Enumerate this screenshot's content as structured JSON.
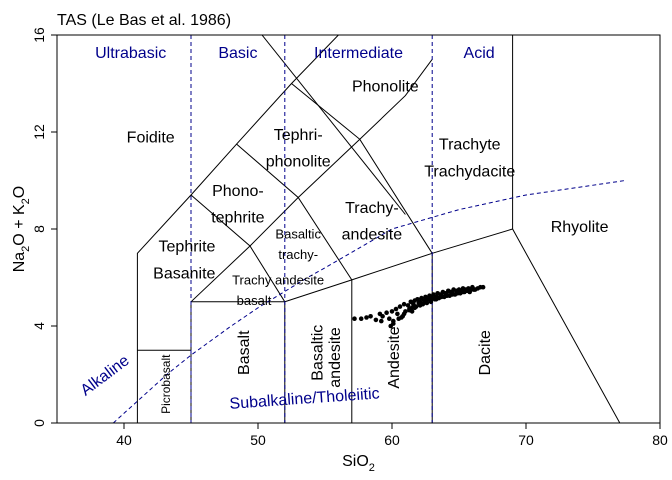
{
  "chart_data": {
    "type": "scatter",
    "title": "TAS (Le Bas et al. 1986)",
    "xlabel": "SiO",
    "xlabel_sub": "2",
    "ylabel_parts": [
      "Na",
      "2",
      "O + K",
      "2",
      "O"
    ],
    "xlim": [
      35,
      80
    ],
    "ylim": [
      0,
      16
    ],
    "x_ticks": [
      40,
      50,
      60,
      70,
      80
    ],
    "y_ticks": [
      0,
      4,
      8,
      12,
      16
    ],
    "grid": false,
    "colors": {
      "fields": "#000000",
      "divisions": "#00008b",
      "points": "#000000"
    },
    "divisions": {
      "x": [
        45,
        52,
        63
      ],
      "labels": [
        {
          "text": "Ultrabasic",
          "x": 40.5,
          "y": 15.3
        },
        {
          "text": "Basic",
          "x": 48.5,
          "y": 15.3
        },
        {
          "text": "Intermediate",
          "x": 57.5,
          "y": 15.3
        },
        {
          "text": "Acid",
          "x": 66.5,
          "y": 15.3
        }
      ]
    },
    "boundaries": [
      [
        [
          41,
          0
        ],
        [
          41,
          7
        ],
        [
          45,
          9.4
        ],
        [
          48.4,
          11.5
        ],
        [
          52.5,
          14
        ],
        [
          56,
          16
        ]
      ],
      [
        [
          45,
          0
        ],
        [
          45,
          5
        ],
        [
          49.4,
          7.3
        ],
        [
          53,
          9.3
        ],
        [
          57.6,
          11.7
        ],
        [
          61,
          13.5
        ],
        [
          63,
          15
        ]
      ],
      [
        [
          52,
          0
        ],
        [
          52,
          5
        ],
        [
          57,
          5.9
        ],
        [
          63,
          7
        ],
        [
          69,
          8
        ],
        [
          77,
          0
        ]
      ],
      [
        [
          57,
          0
        ],
        [
          57,
          5.9
        ]
      ],
      [
        [
          63,
          0
        ],
        [
          63,
          7
        ]
      ],
      [
        [
          41,
          3
        ],
        [
          45,
          3
        ]
      ],
      [
        [
          45,
          5
        ],
        [
          52,
          5
        ]
      ],
      [
        [
          52,
          5
        ],
        [
          49.4,
          7.3
        ],
        [
          45,
          9.4
        ]
      ],
      [
        [
          57,
          5.9
        ],
        [
          53,
          9.3
        ],
        [
          48.4,
          11.5
        ]
      ],
      [
        [
          63,
          7
        ],
        [
          57.6,
          11.7
        ],
        [
          52.5,
          14
        ]
      ],
      [
        [
          69,
          8
        ],
        [
          69,
          17
        ]
      ],
      [
        [
          50.3,
          16
        ],
        [
          61,
          8.6
        ]
      ]
    ],
    "alkaline_line": [
      [
        39.2,
        0
      ],
      [
        40,
        0.4
      ],
      [
        43.2,
        2
      ],
      [
        45,
        2.8
      ],
      [
        48,
        4
      ],
      [
        50,
        4.75
      ],
      [
        53.7,
        6
      ],
      [
        55,
        6.4
      ],
      [
        60,
        8
      ],
      [
        65,
        8.8
      ],
      [
        70,
        9.4
      ],
      [
        77.4,
        10
      ]
    ],
    "field_labels": [
      {
        "text": "Foidite",
        "x": 40.2,
        "y": 11.8,
        "size": 16,
        "anchor": "start"
      },
      {
        "text": "Phonolite",
        "x": 59.5,
        "y": 13.9,
        "size": 16,
        "anchor": "middle"
      },
      {
        "text": "Tephri-",
        "x": 53,
        "y": 11.9,
        "size": 16,
        "anchor": "middle"
      },
      {
        "text": "phonolite",
        "x": 53,
        "y": 10.8,
        "size": 16,
        "anchor": "middle"
      },
      {
        "text": "Trachyte",
        "x": 65.8,
        "y": 11.5,
        "size": 16,
        "anchor": "middle"
      },
      {
        "text": "Trachydacite",
        "x": 65.8,
        "y": 10.4,
        "size": 16,
        "anchor": "middle"
      },
      {
        "text": "Phono-",
        "x": 48.5,
        "y": 9.6,
        "size": 16,
        "anchor": "middle"
      },
      {
        "text": "tephrite",
        "x": 48.5,
        "y": 8.5,
        "size": 16,
        "anchor": "middle"
      },
      {
        "text": "Trachy-",
        "x": 58.5,
        "y": 8.9,
        "size": 16,
        "anchor": "middle"
      },
      {
        "text": "andesite",
        "x": 58.5,
        "y": 7.8,
        "size": 16,
        "anchor": "middle"
      },
      {
        "text": "Rhyolite",
        "x": 74,
        "y": 8.1,
        "size": 16,
        "anchor": "middle"
      },
      {
        "text": "Tephrite",
        "x": 44.7,
        "y": 7.3,
        "size": 16,
        "anchor": "middle"
      },
      {
        "text": "Basanite",
        "x": 44.5,
        "y": 6.2,
        "size": 16,
        "anchor": "middle"
      },
      {
        "text": "Basaltic",
        "x": 53,
        "y": 7.8,
        "size": 13,
        "anchor": "middle"
      },
      {
        "text": "trachy-",
        "x": 53,
        "y": 6.95,
        "size": 13,
        "anchor": "middle"
      },
      {
        "text": "Trachy andesite",
        "x": 51.5,
        "y": 5.9,
        "size": 13,
        "anchor": "middle"
      },
      {
        "text": "basalt",
        "x": 49.7,
        "y": 5.05,
        "size": 13,
        "anchor": "middle"
      }
    ],
    "vertical_labels": [
      {
        "text": "Picrobasalt",
        "x": 43.2,
        "y": 1.6,
        "size": 12
      },
      {
        "text": "Basalt",
        "x": 49,
        "y": 2.9,
        "size": 16
      },
      {
        "text": "Basaltic",
        "x": 54.5,
        "y": 2.9,
        "size": 16
      },
      {
        "text": "andesite",
        "x": 55.8,
        "y": 2.7,
        "size": 16
      },
      {
        "text": "Andesite",
        "x": 60.2,
        "y": 2.7,
        "size": 16
      },
      {
        "text": "Dacite",
        "x": 67,
        "y": 2.9,
        "size": 16
      }
    ],
    "series_labels": [
      {
        "text": "Alkaline",
        "x": 38.8,
        "y": 1.8,
        "rotate": -37
      },
      {
        "text": "Subalkaline/Tholeiitic",
        "x": 53.5,
        "y": 0.8,
        "rotate": -4
      }
    ],
    "points": {
      "x": [
        57.2,
        57.7,
        58.1,
        58.4,
        58.8,
        59.1,
        59.3,
        59.6,
        59.8,
        60.0,
        60.1,
        60.3,
        60.4,
        60.6,
        60.8,
        60.9,
        61.0,
        61.2,
        61.3,
        61.4,
        61.5,
        61.6,
        61.7,
        61.8,
        61.9,
        62.0,
        62.1,
        62.2,
        62.3,
        62.4,
        62.5,
        62.6,
        62.7,
        62.8,
        62.9,
        63.0,
        63.1,
        63.2,
        63.3,
        63.4,
        63.5,
        63.6,
        63.7,
        63.8,
        63.9,
        64.0,
        64.1,
        64.2,
        64.3,
        64.4,
        64.5,
        64.6,
        64.7,
        64.8,
        64.9,
        65.0,
        65.1,
        65.2,
        65.3,
        65.4,
        65.5,
        65.6,
        65.7,
        65.8,
        65.9,
        66.0,
        66.2,
        66.4,
        66.6,
        66.8,
        60.1,
        60.5,
        60.9,
        61.3,
        61.7,
        62.1,
        62.5,
        62.9,
        63.3,
        63.7,
        64.1,
        64.5,
        64.9,
        65.3,
        65.7,
        66.1,
        59.2,
        59.9,
        60.7,
        61.5
      ],
      "y": [
        4.3,
        4.3,
        4.35,
        4.4,
        4.25,
        4.5,
        4.4,
        4.55,
        4.3,
        4.6,
        4.2,
        4.7,
        4.5,
        4.8,
        4.4,
        4.9,
        4.6,
        4.85,
        4.7,
        5.0,
        4.75,
        4.9,
        5.05,
        4.8,
        5.1,
        4.95,
        5.0,
        5.15,
        4.9,
        5.05,
        5.2,
        4.95,
        5.1,
        5.25,
        5.0,
        5.15,
        5.3,
        5.1,
        5.2,
        5.35,
        5.15,
        5.3,
        5.25,
        5.4,
        5.2,
        5.35,
        5.3,
        5.45,
        5.25,
        5.4,
        5.35,
        5.5,
        5.3,
        5.45,
        5.4,
        5.5,
        5.35,
        5.45,
        5.55,
        5.4,
        5.5,
        5.45,
        5.55,
        5.4,
        5.5,
        5.6,
        5.5,
        5.55,
        5.6,
        5.6,
        4.1,
        4.3,
        4.5,
        4.65,
        4.75,
        4.85,
        5.0,
        5.05,
        5.1,
        5.2,
        5.25,
        5.3,
        5.35,
        5.4,
        5.45,
        5.5,
        4.2,
        4.0,
        4.35,
        4.6
      ]
    }
  }
}
